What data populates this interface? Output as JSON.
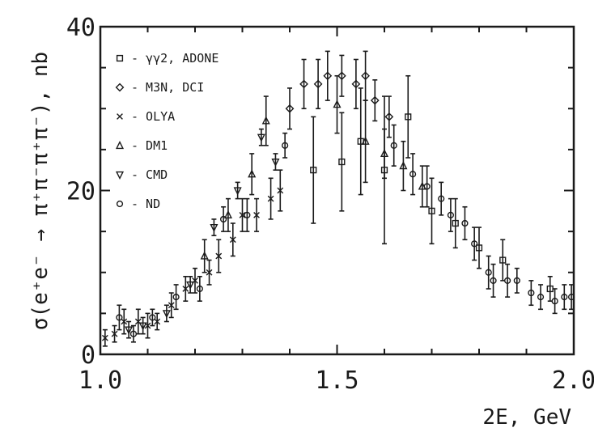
{
  "chart_data": {
    "type": "scatter",
    "xlabel": "2E, GeV",
    "ylabel": "σ(e⁺e⁻ → π⁺π⁻π⁺π⁻), nb",
    "xlim": [
      1.0,
      2.0
    ],
    "ylim": [
      0,
      40
    ],
    "x_ticks": [
      "1.0",
      "1.5",
      "2.0"
    ],
    "y_ticks": [
      "0",
      "20",
      "40"
    ],
    "legend_position": "top-left",
    "colors": {
      "ink": "#1a1a1a",
      "background": "#ffffff"
    },
    "series": [
      {
        "name": "γγ2, ADONE",
        "marker": "square",
        "points": [
          {
            "x": 1.45,
            "y": 22.5,
            "err": 6.5
          },
          {
            "x": 1.51,
            "y": 23.5,
            "err": 6.0
          },
          {
            "x": 1.55,
            "y": 26.0,
            "err": 6.5
          },
          {
            "x": 1.6,
            "y": 22.5,
            "err": 9.0
          },
          {
            "x": 1.65,
            "y": 29.0,
            "err": 5.0
          },
          {
            "x": 1.7,
            "y": 17.5,
            "err": 4.0
          },
          {
            "x": 1.75,
            "y": 16.0,
            "err": 3.0
          },
          {
            "x": 1.8,
            "y": 13.0,
            "err": 2.5
          },
          {
            "x": 1.85,
            "y": 11.5,
            "err": 2.5
          },
          {
            "x": 1.95,
            "y": 8.0,
            "err": 1.5
          }
        ]
      },
      {
        "name": "M3N, DCI",
        "marker": "diamond",
        "points": [
          {
            "x": 1.4,
            "y": 30.0,
            "err": 2.5
          },
          {
            "x": 1.43,
            "y": 33.0,
            "err": 3.0
          },
          {
            "x": 1.46,
            "y": 33.0,
            "err": 3.0
          },
          {
            "x": 1.48,
            "y": 34.0,
            "err": 3.0
          },
          {
            "x": 1.51,
            "y": 34.0,
            "err": 2.5
          },
          {
            "x": 1.54,
            "y": 33.0,
            "err": 3.0
          },
          {
            "x": 1.56,
            "y": 34.0,
            "err": 3.0
          },
          {
            "x": 1.58,
            "y": 31.0,
            "err": 2.5
          },
          {
            "x": 1.61,
            "y": 29.0,
            "err": 2.5
          }
        ]
      },
      {
        "name": "OLYA",
        "marker": "cross",
        "points": [
          {
            "x": 1.01,
            "y": 2.0,
            "err": 1.0
          },
          {
            "x": 1.03,
            "y": 2.5,
            "err": 1.0
          },
          {
            "x": 1.05,
            "y": 4.0,
            "err": 1.5
          },
          {
            "x": 1.08,
            "y": 4.0,
            "err": 1.5
          },
          {
            "x": 1.1,
            "y": 3.5,
            "err": 1.5
          },
          {
            "x": 1.12,
            "y": 4.0,
            "err": 1.0
          },
          {
            "x": 1.15,
            "y": 6.0,
            "err": 1.5
          },
          {
            "x": 1.18,
            "y": 8.0,
            "err": 1.5
          },
          {
            "x": 1.2,
            "y": 9.0,
            "err": 1.5
          },
          {
            "x": 1.23,
            "y": 10.0,
            "err": 1.5
          },
          {
            "x": 1.25,
            "y": 12.0,
            "err": 2.0
          },
          {
            "x": 1.28,
            "y": 14.0,
            "err": 2.0
          },
          {
            "x": 1.3,
            "y": 17.0,
            "err": 2.0
          },
          {
            "x": 1.33,
            "y": 17.0,
            "err": 2.0
          },
          {
            "x": 1.36,
            "y": 19.0,
            "err": 2.5
          },
          {
            "x": 1.38,
            "y": 20.0,
            "err": 2.5
          }
        ]
      },
      {
        "name": "DM1",
        "marker": "triangle-up",
        "points": [
          {
            "x": 1.22,
            "y": 12.0,
            "err": 2.0
          },
          {
            "x": 1.27,
            "y": 17.0,
            "err": 2.0
          },
          {
            "x": 1.32,
            "y": 22.0,
            "err": 2.5
          },
          {
            "x": 1.35,
            "y": 28.5,
            "err": 3.0
          },
          {
            "x": 1.5,
            "y": 30.5,
            "err": 3.5
          },
          {
            "x": 1.56,
            "y": 26.0,
            "err": 5.0
          },
          {
            "x": 1.6,
            "y": 24.5,
            "err": 3.0
          },
          {
            "x": 1.64,
            "y": 23.0,
            "err": 3.0
          },
          {
            "x": 1.68,
            "y": 20.5,
            "err": 2.5
          }
        ]
      },
      {
        "name": "CMD",
        "marker": "triangle-down",
        "points": [
          {
            "x": 1.06,
            "y": 3.0,
            "err": 1.0
          },
          {
            "x": 1.09,
            "y": 3.5,
            "err": 1.0
          },
          {
            "x": 1.14,
            "y": 5.0,
            "err": 1.0
          },
          {
            "x": 1.19,
            "y": 8.5,
            "err": 1.0
          },
          {
            "x": 1.24,
            "y": 15.5,
            "err": 1.0
          },
          {
            "x": 1.29,
            "y": 20.0,
            "err": 1.0
          },
          {
            "x": 1.34,
            "y": 26.5,
            "err": 1.0
          },
          {
            "x": 1.37,
            "y": 23.5,
            "err": 1.0
          }
        ]
      },
      {
        "name": "ND",
        "marker": "circle",
        "points": [
          {
            "x": 1.04,
            "y": 4.5,
            "err": 1.5
          },
          {
            "x": 1.07,
            "y": 2.5,
            "err": 1.0
          },
          {
            "x": 1.11,
            "y": 4.5,
            "err": 1.0
          },
          {
            "x": 1.16,
            "y": 7.0,
            "err": 1.5
          },
          {
            "x": 1.21,
            "y": 8.0,
            "err": 1.5
          },
          {
            "x": 1.26,
            "y": 16.5,
            "err": 1.5
          },
          {
            "x": 1.31,
            "y": 17.0,
            "err": 2.0
          },
          {
            "x": 1.39,
            "y": 25.5,
            "err": 1.5
          },
          {
            "x": 1.62,
            "y": 25.5,
            "err": 2.5
          },
          {
            "x": 1.66,
            "y": 22.0,
            "err": 2.5
          },
          {
            "x": 1.69,
            "y": 20.5,
            "err": 2.5
          },
          {
            "x": 1.72,
            "y": 19.0,
            "err": 2.0
          },
          {
            "x": 1.74,
            "y": 17.0,
            "err": 2.0
          },
          {
            "x": 1.77,
            "y": 16.0,
            "err": 2.0
          },
          {
            "x": 1.79,
            "y": 13.5,
            "err": 2.0
          },
          {
            "x": 1.82,
            "y": 10.0,
            "err": 2.0
          },
          {
            "x": 1.83,
            "y": 9.0,
            "err": 2.0
          },
          {
            "x": 1.86,
            "y": 9.0,
            "err": 2.0
          },
          {
            "x": 1.88,
            "y": 9.0,
            "err": 1.5
          },
          {
            "x": 1.91,
            "y": 7.5,
            "err": 1.5
          },
          {
            "x": 1.93,
            "y": 7.0,
            "err": 1.5
          },
          {
            "x": 1.96,
            "y": 6.5,
            "err": 1.5
          },
          {
            "x": 1.98,
            "y": 7.0,
            "err": 1.5
          },
          {
            "x": 1.995,
            "y": 7.0,
            "err": 1.5
          }
        ]
      }
    ]
  }
}
